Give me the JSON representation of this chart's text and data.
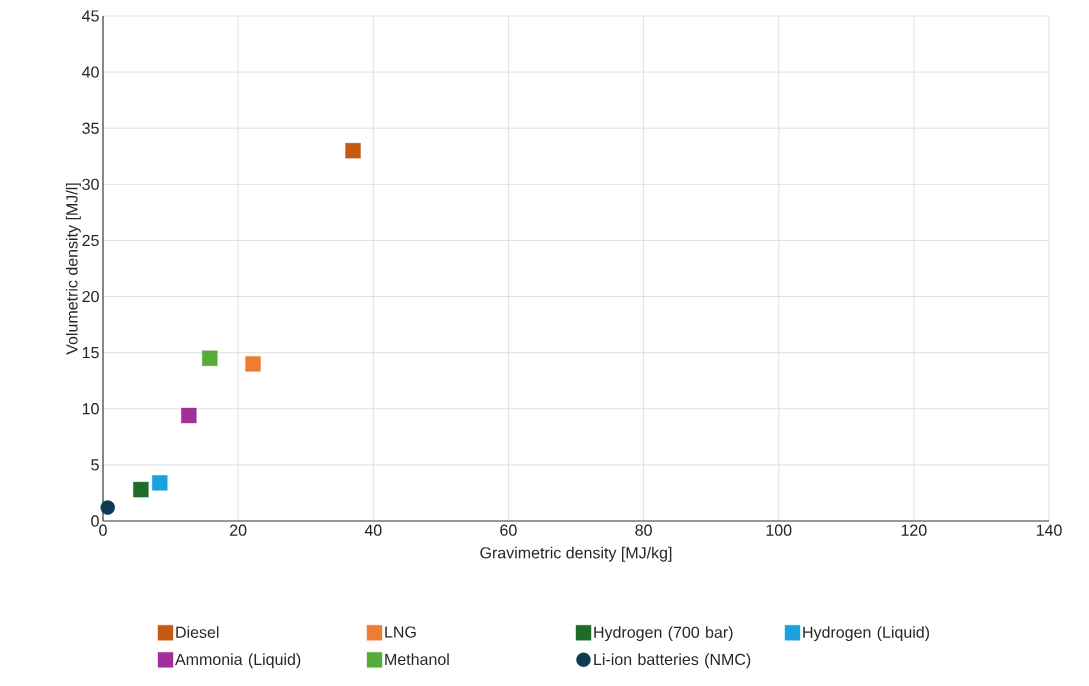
{
  "chart_data": {
    "type": "scatter",
    "xlabel": "Gravimetric density [MJ/kg]",
    "ylabel": "Volumetric density [MJ/l]",
    "xlim": [
      0,
      140
    ],
    "xticks": [
      0,
      20,
      40,
      60,
      80,
      100,
      120,
      140
    ],
    "ylim": [
      0,
      45
    ],
    "yticks": [
      0,
      5,
      10,
      15,
      20,
      25,
      30,
      35,
      40,
      45
    ],
    "grid": true,
    "legend": "bottom",
    "series": [
      {
        "name": "Diesel",
        "color": "#c55a11",
        "marker": "square",
        "x": [
          37
        ],
        "values": [
          33
        ]
      },
      {
        "name": "LNG",
        "color": "#ed7d31",
        "marker": "square",
        "x": [
          22.2
        ],
        "values": [
          14
        ]
      },
      {
        "name": "Hydrogen (700 bar)",
        "color": "#1e6b2a",
        "marker": "square",
        "x": [
          5.6
        ],
        "values": [
          2.8
        ]
      },
      {
        "name": "Hydrogen (Liquid)",
        "color": "#1ba1de",
        "marker": "square",
        "x": [
          8.4
        ],
        "values": [
          3.4
        ]
      },
      {
        "name": "Ammonia (Liquid)",
        "color": "#a0309a",
        "marker": "square",
        "x": [
          12.7
        ],
        "values": [
          9.4
        ]
      },
      {
        "name": "Methanol",
        "color": "#55ad37",
        "marker": "square",
        "x": [
          15.8
        ],
        "values": [
          14.5
        ]
      },
      {
        "name": "Li-ion batteries (NMC)",
        "color": "#0e3a52",
        "marker": "circle",
        "x": [
          0.7
        ],
        "values": [
          1.2
        ]
      }
    ]
  }
}
